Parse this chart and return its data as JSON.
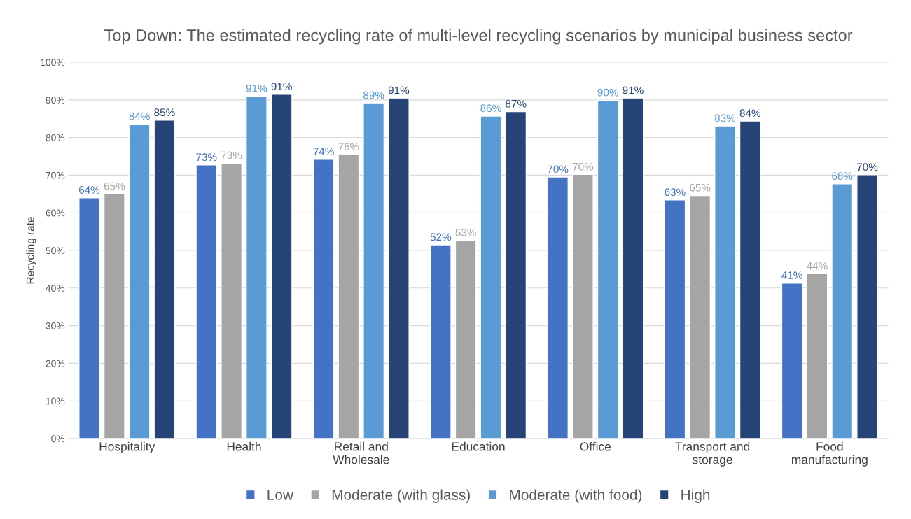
{
  "chart_data": {
    "type": "bar",
    "title": "Top Down: The estimated recycling rate of multi-level recycling scenarios by municipal business sector",
    "ylabel": "Recycling rate",
    "categories": [
      "Hospitality",
      "Health",
      "Retail and\nWholesale",
      "Education",
      "Office",
      "Transport and\nstorage",
      "Food\nmanufacturing"
    ],
    "series": [
      {
        "name": "Low",
        "color": "#4472c4",
        "values": [
          64.0,
          72.7,
          74.2,
          51.5,
          69.5,
          63.4,
          41.3
        ],
        "value_labels": [
          "64%",
          "73%",
          "74%",
          "52%",
          "70%",
          "63%",
          "41%"
        ]
      },
      {
        "name": "Moderate (with glass)",
        "color": "#a5a5a5",
        "values": [
          65.0,
          73.2,
          75.5,
          52.7,
          70.2,
          64.6,
          43.8
        ],
        "value_labels": [
          "65%",
          "73%",
          "76%",
          "53%",
          "70%",
          "65%",
          "44%"
        ]
      },
      {
        "name": "Moderate (with food)",
        "color": "#5b9bd5",
        "values": [
          83.6,
          91.0,
          89.2,
          85.7,
          89.9,
          83.1,
          67.7
        ],
        "value_labels": [
          "84%",
          "91%",
          "89%",
          "86%",
          "90%",
          "83%",
          "68%"
        ]
      },
      {
        "name": "High",
        "color": "#264478",
        "values": [
          84.6,
          91.5,
          90.5,
          86.9,
          90.5,
          84.4,
          70.1
        ],
        "value_labels": [
          "85%",
          "91%",
          "91%",
          "87%",
          "91%",
          "84%",
          "70%"
        ]
      }
    ],
    "ylim": [
      0,
      100
    ],
    "yticks": [
      {
        "value": 0,
        "label": "0%"
      },
      {
        "value": 10,
        "label": "10%"
      },
      {
        "value": 20,
        "label": "20%"
      },
      {
        "value": 30,
        "label": "30%"
      },
      {
        "value": 40,
        "label": "40%"
      },
      {
        "value": 50,
        "label": "50%"
      },
      {
        "value": 60,
        "label": "60%"
      },
      {
        "value": 70,
        "label": "70%"
      },
      {
        "value": 80,
        "label": "80%"
      },
      {
        "value": 90,
        "label": "90%"
      },
      {
        "value": 100,
        "label": "100%"
      }
    ],
    "grid": "y",
    "legend": "bottom"
  }
}
